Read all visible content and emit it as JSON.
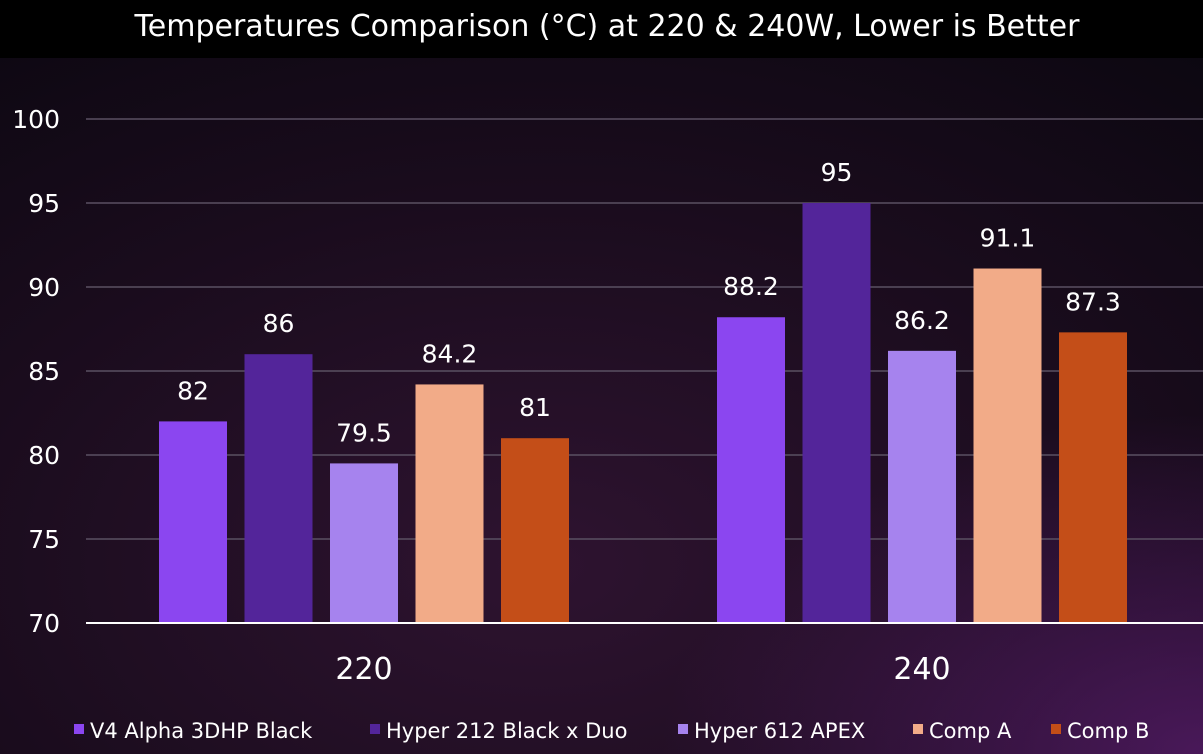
{
  "chart_data": {
    "type": "bar",
    "title": "Temperatures Comparison (°C) at 220 & 240W, Lower is Better",
    "categories": [
      "220",
      "240"
    ],
    "series": [
      {
        "name": "V4 Alpha 3DHP Black",
        "values": [
          82,
          88.2
        ],
        "color": "#8b46f0"
      },
      {
        "name": "Hyper 212 Black x Duo",
        "values": [
          86,
          95
        ],
        "color": "#53259a"
      },
      {
        "name": "Hyper 612 APEX",
        "values": [
          79.5,
          86.2
        ],
        "color": "#a683ee"
      },
      {
        "name": "Comp A",
        "values": [
          84.2,
          91.1
        ],
        "color": "#f2ab88"
      },
      {
        "name": "Comp B",
        "values": [
          81,
          87.3
        ],
        "color": "#c44e18"
      }
    ],
    "data_labels": [
      [
        "82",
        "86",
        "79.5",
        "84.2",
        "81"
      ],
      [
        "88.2",
        "95",
        "86.2",
        "91.1",
        "87.3"
      ]
    ],
    "ylim": [
      70,
      100
    ],
    "yticks": [
      "100",
      "95",
      "90",
      "85",
      "80",
      "75",
      "70"
    ],
    "grid": true,
    "legend_position": "bottom"
  }
}
